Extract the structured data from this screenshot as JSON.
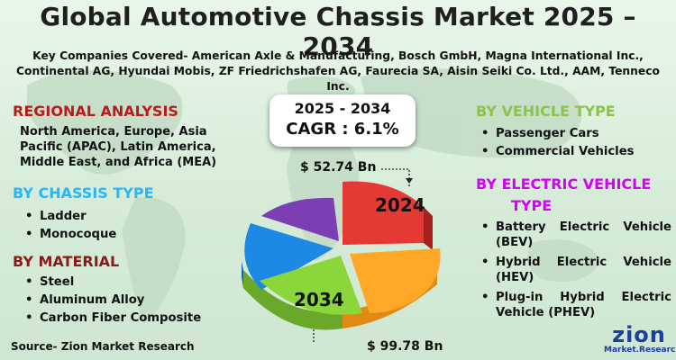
{
  "title": "Global Automotive Chassis Market  2025 – 2034",
  "companies": "Key Companies Covered- American Axle & Manufacturing, Bosch GmbH, Magna International Inc., Continental AG, Hyundai Mobis, ZF Friedrichshafen AG, Faurecia SA, Aisin Seiki Co. Ltd., AAM, Tenneco Inc.",
  "forecast": {
    "years": "2025 - 2034",
    "cagr": "CAGR : 6.1%"
  },
  "regional": {
    "heading": "REGIONAL ANALYSIS",
    "text": "North America, Europe, Asia Pacific (APAC), Latin America, Middle East, and Africa (MEA)"
  },
  "chassis": {
    "heading": "BY CHASSIS TYPE",
    "items": [
      "Ladder",
      "Monocoque"
    ]
  },
  "material": {
    "heading": "BY MATERIAL",
    "items": [
      "Steel",
      "Aluminum Alloy",
      "Carbon Fiber Composite"
    ]
  },
  "vehicle": {
    "heading": "BY VEHICLE TYPE",
    "items": [
      "Passenger Cars",
      "Commercial Vehicles"
    ]
  },
  "electric": {
    "heading_line1": "BY ELECTRIC VEHICLE",
    "heading_line2": "TYPE",
    "items": [
      "Battery Electric Vehicle (BEV)",
      "Hybrid Electric Vehicle (HEV)",
      "Plug-in Hybrid Electric Vehicle (PHEV)"
    ]
  },
  "pie": {
    "label_start": "2024",
    "label_end": "2034",
    "value_start": "$ 52.74 Bn",
    "value_end": "$ 99.78 Bn"
  },
  "source": "Source- Zion Market Research",
  "logo": {
    "name": "zion",
    "sub": "Market.Research"
  },
  "colors": {
    "heading_red": "#b71c1c",
    "heading_cyan": "#29b6f6",
    "heading_green": "#8bc34a",
    "heading_magenta": "#d500f9",
    "heading_maroon": "#8b1a1a",
    "slice_red": "#e53935",
    "slice_orange": "#ffa726",
    "slice_green": "#8bd63a",
    "slice_blue": "#1e88e5",
    "slice_purple": "#7b3fb3"
  }
}
